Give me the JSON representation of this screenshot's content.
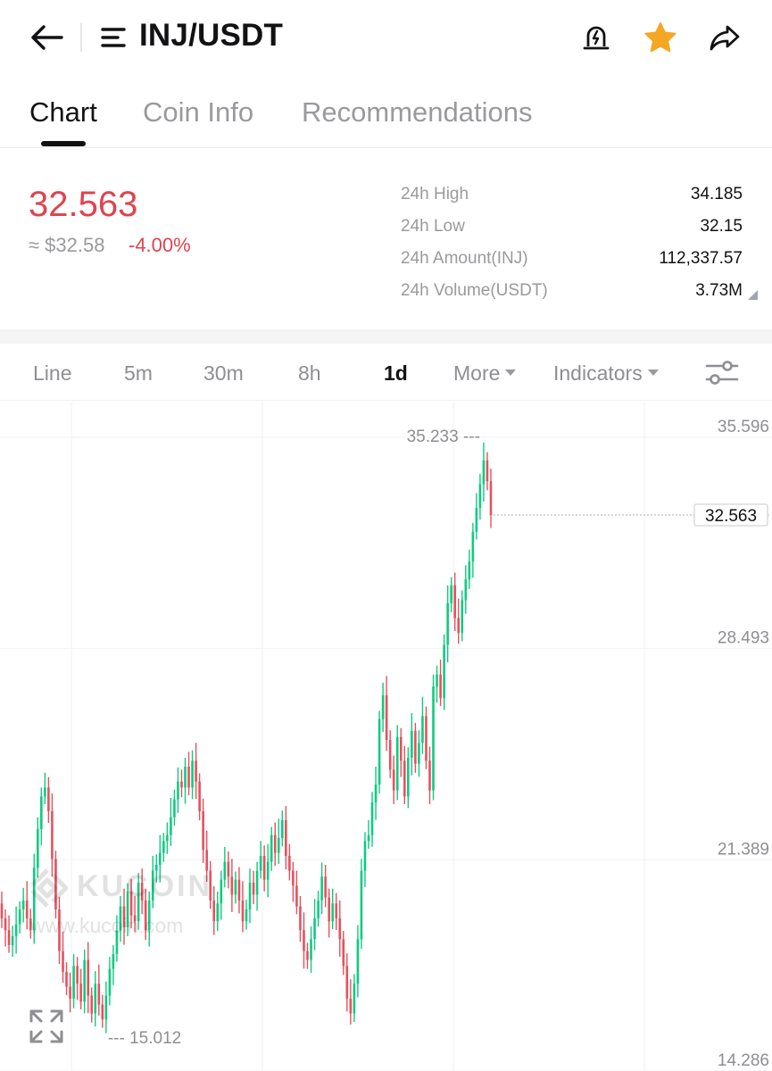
{
  "header": {
    "pair": "INJ/USDT",
    "icons": {
      "back": "arrow-left-icon",
      "menu": "menu-icon",
      "alert": "price-alert-bell-icon",
      "favorite": "star-icon",
      "share": "share-icon"
    },
    "favorite_color": "#F5A623"
  },
  "tabs": [
    {
      "label": "Chart",
      "active": true
    },
    {
      "label": "Coin Info",
      "active": false
    },
    {
      "label": "Recommendations",
      "active": false
    }
  ],
  "price": {
    "last": "32.563",
    "usd": "≈ $32.58",
    "change": "-4.00%",
    "color": "#E0434F"
  },
  "stats": [
    {
      "label": "24h High",
      "value": "34.185"
    },
    {
      "label": "24h Low",
      "value": "32.15"
    },
    {
      "label": "24h Amount(INJ)",
      "value": "112,337.57"
    },
    {
      "label": "24h Volume(USDT)",
      "value": "3.73M"
    }
  ],
  "intervals": {
    "line": "Line",
    "m5": "5m",
    "m30": "30m",
    "h8": "8h",
    "d1": "1d",
    "more": "More",
    "indicators": "Indicators",
    "selected": "1d"
  },
  "watermark": {
    "name": "KUCOIN",
    "url": "www.kucoin.com"
  },
  "chart_data": {
    "type": "candlestick",
    "interval": "1d",
    "y_ticks": [
      "35.596",
      "28.493",
      "21.389",
      "14.286"
    ],
    "y_range": [
      14.286,
      35.596
    ],
    "last_price_label": "32.563",
    "high_label": "35.233",
    "low_label": "15.012",
    "up_color": "#0ECB81",
    "down_color": "#E5515E",
    "closes": [
      19.0,
      18.6,
      18.1,
      18.4,
      18.8,
      19.3,
      19.6,
      19.0,
      18.6,
      20.7,
      22.0,
      23.1,
      23.4,
      22.6,
      21.0,
      19.3,
      17.9,
      17.2,
      16.7,
      16.3,
      17.4,
      16.8,
      16.2,
      17.6,
      16.4,
      15.8,
      16.8,
      16.1,
      15.6,
      16.4,
      17.3,
      17.8,
      18.6,
      19.4,
      18.7,
      19.9,
      19.1,
      18.9,
      20.2,
      19.6,
      18.6,
      19.6,
      20.6,
      20.8,
      21.2,
      21.6,
      21.8,
      22.4,
      23.0,
      23.6,
      23.4,
      24.1,
      23.4,
      24.3,
      23.6,
      22.6,
      21.3,
      20.6,
      19.6,
      18.9,
      19.5,
      20.3,
      20.9,
      20.4,
      19.8,
      20.3,
      19.6,
      18.9,
      19.3,
      20.2,
      19.8,
      20.6,
      21.1,
      20.3,
      20.9,
      21.8,
      21.2,
      21.7,
      22.3,
      21.1,
      20.6,
      20.1,
      19.4,
      18.6,
      17.9,
      17.6,
      18.3,
      19.0,
      19.6,
      20.4,
      19.7,
      18.9,
      19.5,
      19.0,
      18.3,
      17.4,
      16.3,
      15.8,
      16.8,
      18.3,
      20.6,
      21.6,
      21.8,
      22.9,
      23.5,
      25.7,
      26.5,
      25.0,
      24.0,
      23.3,
      25.1,
      24.3,
      23.1,
      24.4,
      25.3,
      24.2,
      24.9,
      25.8,
      24.3,
      23.3,
      26.8,
      27.2,
      26.4,
      28.2,
      29.6,
      30.2,
      29.1,
      28.6,
      29.7,
      30.4,
      31.0,
      32.0,
      32.8,
      33.6,
      34.4,
      33.7,
      32.563
    ]
  }
}
